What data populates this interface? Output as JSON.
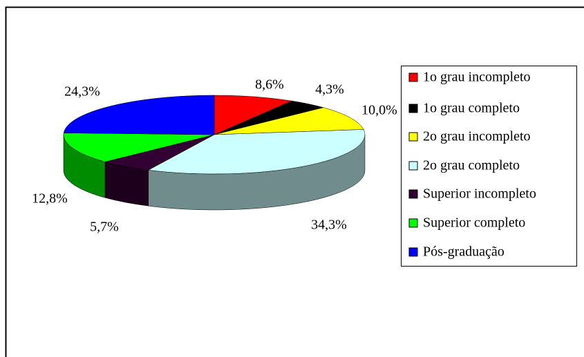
{
  "chart_data": {
    "type": "pie",
    "categories": [
      "1o grau incompleto",
      "1o grau completo",
      "2o grau incompleto",
      "2o grau completo",
      "Superior incompleto",
      "Superior completo",
      "Pós-graduação"
    ],
    "values": [
      8.6,
      4.3,
      10.0,
      34.3,
      5.7,
      12.8,
      24.3
    ],
    "value_labels": [
      "8,6%",
      "4,3%",
      "10,0%",
      "34,3%",
      "5,7%",
      "12,8%",
      "24,3%"
    ],
    "colors": [
      "#ff0000",
      "#000000",
      "#ffff00",
      "#ccffff",
      "#330033",
      "#00ff00",
      "#0000ff"
    ],
    "legend": "right"
  }
}
